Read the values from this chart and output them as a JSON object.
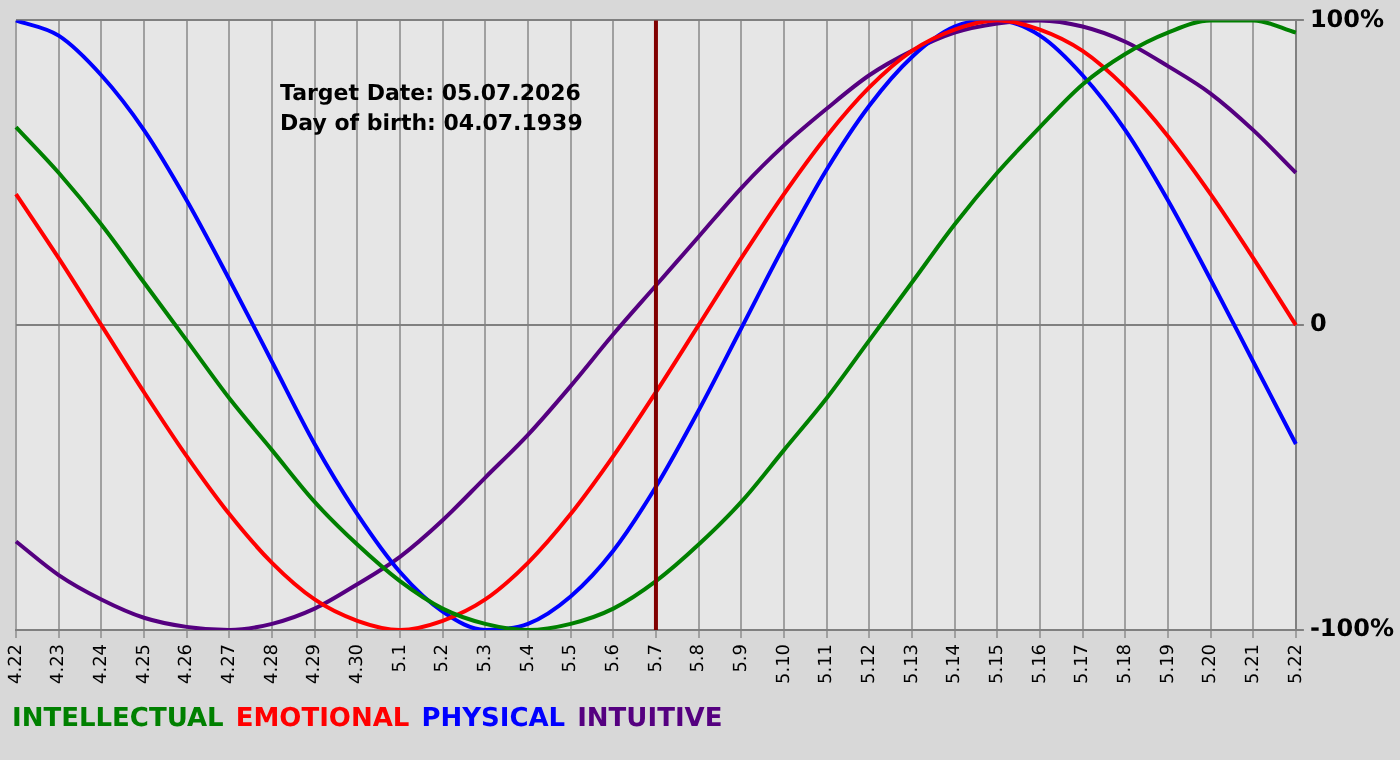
{
  "chart_data": {
    "type": "line",
    "categories": [
      "4.22",
      "4.23",
      "4.24",
      "4.25",
      "4.26",
      "4.27",
      "4.28",
      "4.29",
      "4.30",
      "5.1",
      "5.2",
      "5.3",
      "5.4",
      "5.5",
      "5.6",
      "5.7",
      "5.8",
      "5.9",
      "5.10",
      "5.11",
      "5.12",
      "5.13",
      "5.14",
      "5.15",
      "5.16",
      "5.17",
      "5.18",
      "5.19",
      "5.20",
      "5.21",
      "5.22"
    ],
    "series": [
      {
        "name": "INTELLECTUAL",
        "color": "#008000",
        "values": [
          65,
          50,
          33,
          14,
          -5,
          -24,
          -41,
          -58,
          -72,
          -84,
          -93,
          -98,
          -100,
          -98,
          -93,
          -84,
          -72,
          -58,
          -41,
          -24,
          -5,
          14,
          33,
          50,
          65,
          79,
          89,
          96,
          100,
          100,
          96
        ]
      },
      {
        "name": "EMOTIONAL",
        "color": "#ff0000",
        "values": [
          43,
          22,
          0,
          -22,
          -43,
          -62,
          -78,
          -90,
          -97,
          -100,
          -97,
          -90,
          -78,
          -62,
          -43,
          -22,
          0,
          22,
          43,
          62,
          78,
          90,
          97,
          100,
          97,
          90,
          78,
          62,
          43,
          22,
          0
        ]
      },
      {
        "name": "PHYSICAL",
        "color": "#0000ff",
        "values": [
          100,
          95,
          82,
          64,
          41,
          15,
          -12,
          -39,
          -62,
          -81,
          -94,
          -100,
          -98,
          -89,
          -74,
          -53,
          -28,
          -1,
          26,
          51,
          72,
          88,
          98,
          100,
          95,
          82,
          64,
          41,
          15,
          -12,
          -39
        ]
      },
      {
        "name": "INTUITIVE",
        "color": "#550080",
        "values": [
          -71,
          -82,
          -90,
          -96,
          -99,
          -100,
          -98,
          -93,
          -85,
          -76,
          -64,
          -50,
          -36,
          -20,
          -3,
          13,
          29,
          45,
          59,
          71,
          82,
          90,
          96,
          99,
          100,
          98,
          93,
          85,
          76,
          64,
          50
        ]
      }
    ],
    "ylim": [
      -100,
      100
    ],
    "yticks": [
      {
        "value": -100,
        "label": "-100%"
      },
      0,
      {
        "value": 100,
        "label": "100%"
      }
    ],
    "grid": true,
    "legend": "bottom left",
    "marker": "none",
    "line_style": "solid",
    "ref_lines": [
      {
        "axis": "x",
        "value": "5.7",
        "color": "#800000"
      }
    ],
    "annotations": [
      "Target Date: 05.07.2026",
      "Day of birth: 04.07.1939"
    ]
  }
}
